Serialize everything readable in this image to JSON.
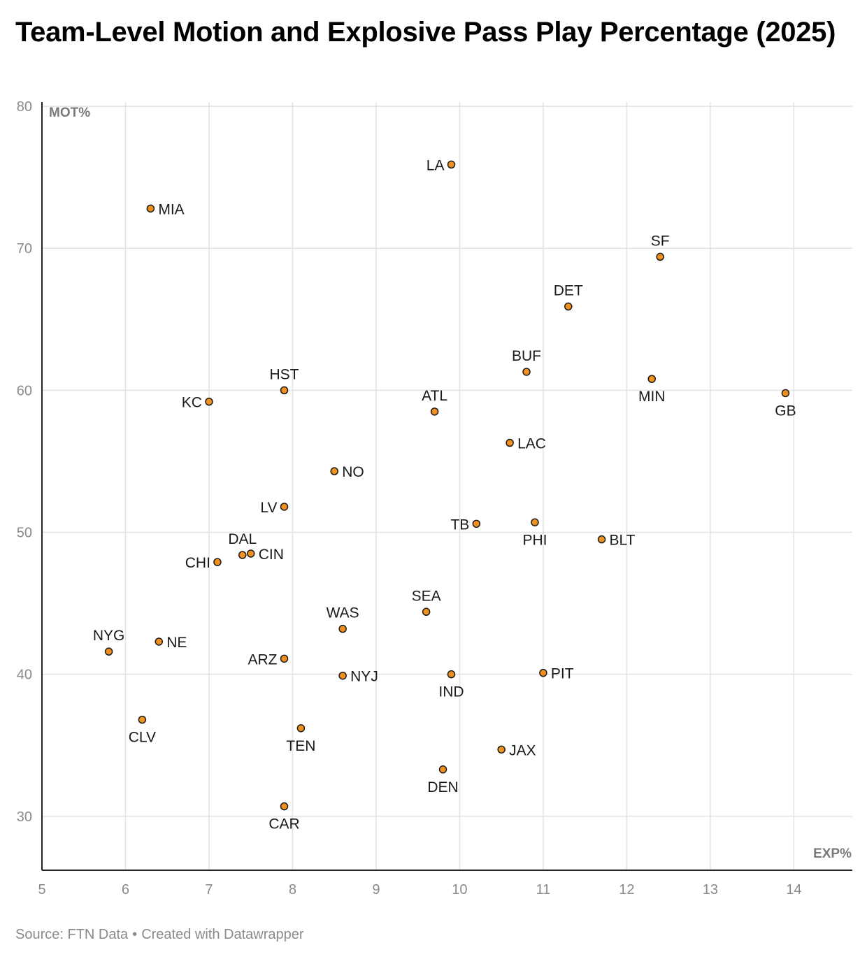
{
  "title": "Team-Level Motion and Explosive Pass Play Percentage (2025)",
  "footer": {
    "source": "Source: FTN Data",
    "separator": "•",
    "credit": "Created with Datawrapper"
  },
  "colors": {
    "point_fill": "#f0901e",
    "point_stroke": "#1a1a1a",
    "grid": "#e2e2e2",
    "axis": "#222222",
    "tick_label": "#8a8a8a",
    "axis_title": "#7a7a7a",
    "label": "#1a1a1a"
  },
  "chart_data": {
    "type": "scatter",
    "title": "Team-Level Motion and Explosive Pass Play Percentage (2025)",
    "xlabel": "EXP%",
    "ylabel": "MOT%",
    "xlim": [
      5,
      14.7
    ],
    "ylim": [
      26.2,
      80.3
    ],
    "xticks": [
      5,
      6,
      7,
      8,
      9,
      10,
      11,
      12,
      13,
      14
    ],
    "yticks": [
      30,
      40,
      50,
      60,
      70,
      80
    ],
    "grid": true,
    "points": [
      {
        "team": "LA",
        "x": 9.9,
        "y": 75.9,
        "label_pos": "left"
      },
      {
        "team": "MIA",
        "x": 6.3,
        "y": 72.8,
        "label_pos": "right"
      },
      {
        "team": "SF",
        "x": 12.4,
        "y": 69.4,
        "label_pos": "top"
      },
      {
        "team": "DET",
        "x": 11.3,
        "y": 65.9,
        "label_pos": "top"
      },
      {
        "team": "BUF",
        "x": 10.8,
        "y": 61.3,
        "label_pos": "top"
      },
      {
        "team": "MIN",
        "x": 12.3,
        "y": 60.8,
        "label_pos": "bottom"
      },
      {
        "team": "HST",
        "x": 7.9,
        "y": 60.0,
        "label_pos": "top"
      },
      {
        "team": "GB",
        "x": 13.9,
        "y": 59.8,
        "label_pos": "bottom"
      },
      {
        "team": "KC",
        "x": 7.0,
        "y": 59.2,
        "label_pos": "left"
      },
      {
        "team": "ATL",
        "x": 9.7,
        "y": 58.5,
        "label_pos": "top"
      },
      {
        "team": "LAC",
        "x": 10.6,
        "y": 56.3,
        "label_pos": "right"
      },
      {
        "team": "NO",
        "x": 8.5,
        "y": 54.3,
        "label_pos": "right"
      },
      {
        "team": "LV",
        "x": 7.9,
        "y": 51.8,
        "label_pos": "left"
      },
      {
        "team": "PHI",
        "x": 10.9,
        "y": 50.7,
        "label_pos": "bottom"
      },
      {
        "team": "TB",
        "x": 10.2,
        "y": 50.6,
        "label_pos": "left"
      },
      {
        "team": "BLT",
        "x": 11.7,
        "y": 49.5,
        "label_pos": "right"
      },
      {
        "team": "CIN",
        "x": 7.5,
        "y": 48.5,
        "label_pos": "right"
      },
      {
        "team": "DAL",
        "x": 7.4,
        "y": 48.4,
        "label_pos": "top"
      },
      {
        "team": "CHI",
        "x": 7.1,
        "y": 47.9,
        "label_pos": "left"
      },
      {
        "team": "SEA",
        "x": 9.6,
        "y": 44.4,
        "label_pos": "top"
      },
      {
        "team": "WAS",
        "x": 8.6,
        "y": 43.2,
        "label_pos": "top"
      },
      {
        "team": "NE",
        "x": 6.4,
        "y": 42.3,
        "label_pos": "right"
      },
      {
        "team": "NYG",
        "x": 5.8,
        "y": 41.6,
        "label_pos": "top"
      },
      {
        "team": "ARZ",
        "x": 7.9,
        "y": 41.1,
        "label_pos": "left"
      },
      {
        "team": "PIT",
        "x": 11.0,
        "y": 40.1,
        "label_pos": "right"
      },
      {
        "team": "IND",
        "x": 9.9,
        "y": 40.0,
        "label_pos": "bottom"
      },
      {
        "team": "NYJ",
        "x": 8.6,
        "y": 39.9,
        "label_pos": "right"
      },
      {
        "team": "CLV",
        "x": 6.2,
        "y": 36.8,
        "label_pos": "bottom"
      },
      {
        "team": "TEN",
        "x": 8.1,
        "y": 36.2,
        "label_pos": "bottom"
      },
      {
        "team": "JAX",
        "x": 10.5,
        "y": 34.7,
        "label_pos": "right"
      },
      {
        "team": "DEN",
        "x": 9.8,
        "y": 33.3,
        "label_pos": "bottom"
      },
      {
        "team": "CAR",
        "x": 7.9,
        "y": 30.7,
        "label_pos": "bottom"
      }
    ]
  }
}
